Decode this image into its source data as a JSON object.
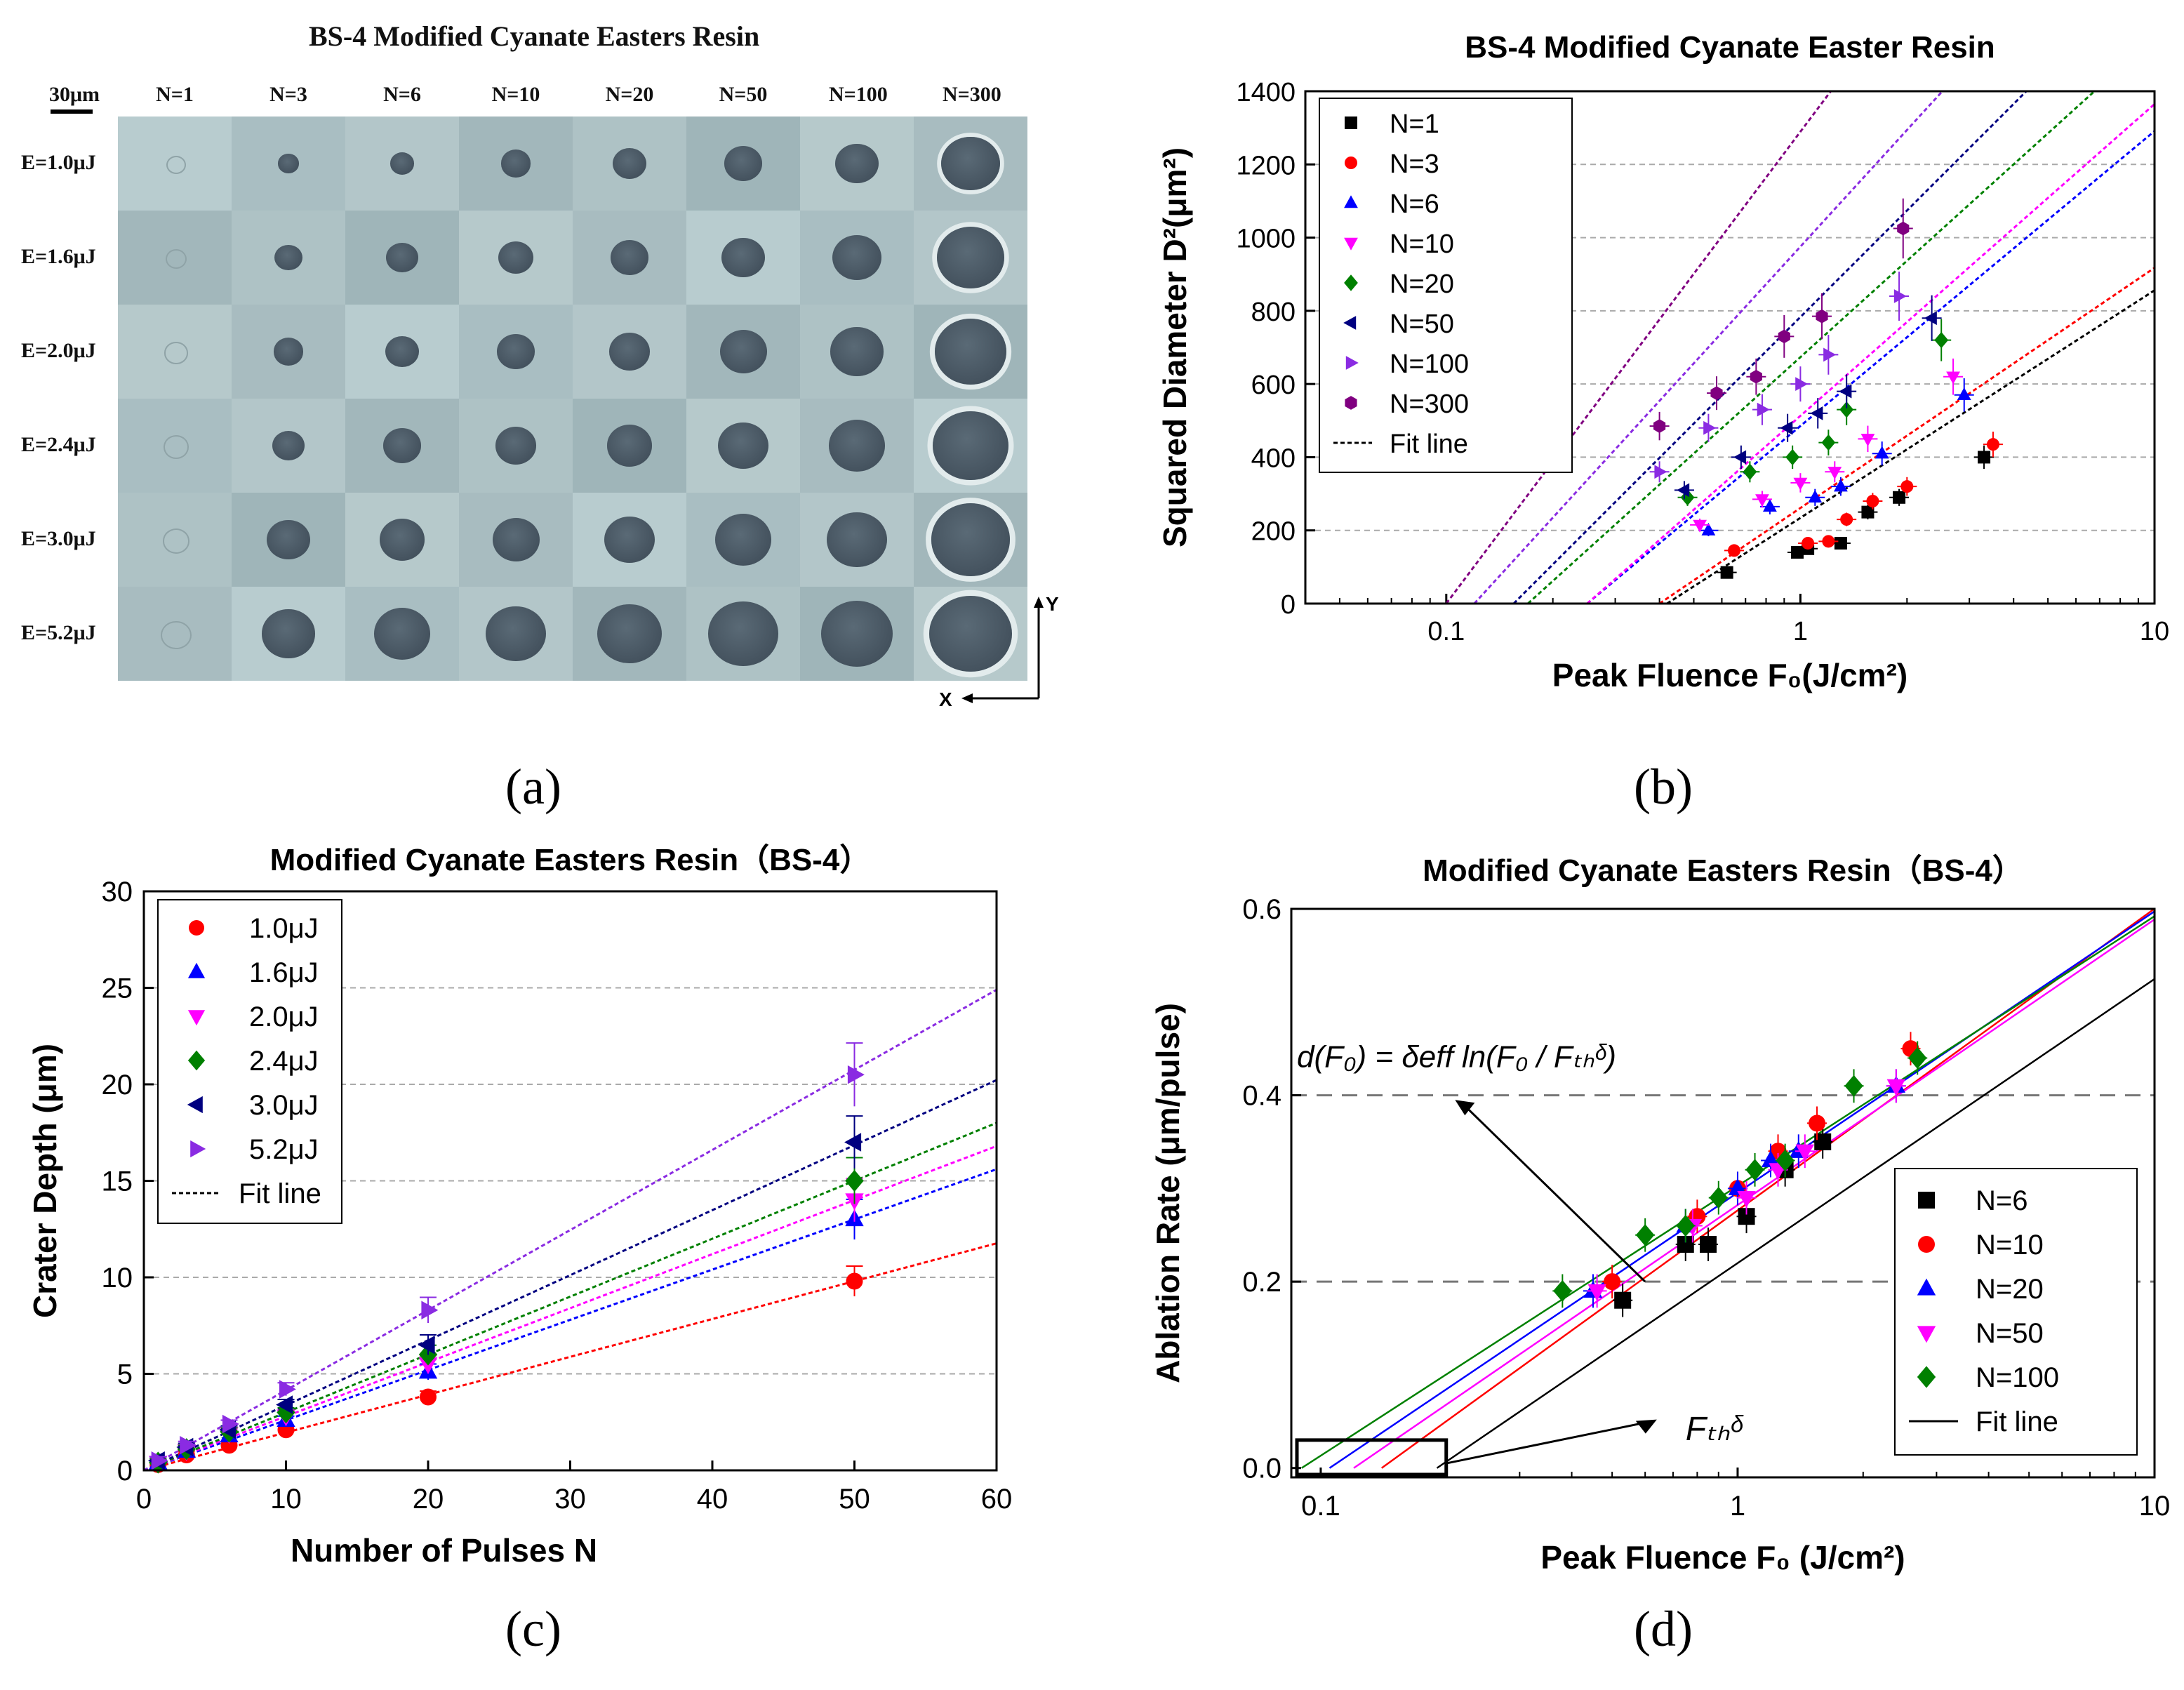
{
  "captions": [
    "(a)",
    "(b)",
    "(c)",
    "(d)"
  ],
  "panel_a": {
    "title": "BS-4 Modified Cyanate Easters Resin",
    "scale_label": "30μm",
    "columns": [
      "N=1",
      "N=3",
      "N=6",
      "N=10",
      "N=20",
      "N=50",
      "N=100",
      "N=300"
    ],
    "rows": [
      "E=1.0μJ",
      "E=1.6μJ",
      "E=2.0μJ",
      "E=2.4μJ",
      "E=3.0μJ",
      "E=5.2μJ"
    ],
    "axis_x": "X",
    "axis_y": "Y",
    "crater_diam_rel": [
      [
        0.18,
        0.22,
        0.26,
        0.32,
        0.36,
        0.4,
        0.46,
        0.62
      ],
      [
        0.2,
        0.3,
        0.34,
        0.38,
        0.4,
        0.46,
        0.52,
        0.72
      ],
      [
        0.22,
        0.32,
        0.36,
        0.4,
        0.44,
        0.5,
        0.56,
        0.76
      ],
      [
        0.24,
        0.34,
        0.4,
        0.44,
        0.48,
        0.54,
        0.6,
        0.8
      ],
      [
        0.26,
        0.46,
        0.48,
        0.5,
        0.54,
        0.6,
        0.64,
        0.84
      ],
      [
        0.3,
        0.56,
        0.6,
        0.64,
        0.68,
        0.74,
        0.76,
        0.88
      ]
    ]
  },
  "chart_data": [
    {
      "type": "scatter",
      "title": "BS-4  Modified Cyanate Easter Resin",
      "xlabel": "Peak Fluence F₀(J/cm²)",
      "ylabel": "Squared Diameter D²(μm²)",
      "xscale": "log",
      "xlim": [
        0.04,
        10
      ],
      "ylim": [
        0,
        1400
      ],
      "xticks": [
        0.1,
        1,
        10
      ],
      "xtick_labels": [
        "0.1",
        "1",
        "10"
      ],
      "yticks": [
        0,
        200,
        400,
        600,
        800,
        1000,
        1200,
        1400
      ],
      "legend_position": "top-left",
      "grid": "horizontal dashed",
      "series": [
        {
          "name": "N=1",
          "color": "#000000",
          "marker": "square",
          "x": [
            0.62,
            0.98,
            1.05,
            1.3,
            1.55,
            1.9,
            3.3
          ],
          "y": [
            85,
            140,
            150,
            165,
            250,
            290,
            400
          ],
          "fit": {
            "F_th": 0.42,
            "slope": 270
          }
        },
        {
          "name": "N=3",
          "color": "#ff0000",
          "marker": "circle",
          "x": [
            0.65,
            1.05,
            1.2,
            1.35,
            1.6,
            2.0,
            3.5
          ],
          "y": [
            145,
            165,
            170,
            230,
            280,
            320,
            435
          ],
          "fit": {
            "F_th": 0.4,
            "slope": 285
          }
        },
        {
          "name": "N=6",
          "color": "#0000ff",
          "marker": "triangle-up",
          "x": [
            0.55,
            0.82,
            1.1,
            1.3,
            1.7,
            2.9
          ],
          "y": [
            200,
            265,
            290,
            320,
            410,
            570
          ],
          "fit": {
            "F_th": 0.25,
            "slope": 350
          }
        },
        {
          "name": "N=10",
          "color": "#ff00ff",
          "marker": "triangle-down",
          "x": [
            0.52,
            0.78,
            1.0,
            1.25,
            1.55,
            2.7
          ],
          "y": [
            215,
            285,
            330,
            360,
            450,
            620
          ],
          "fit": {
            "F_th": 0.25,
            "slope": 370
          }
        },
        {
          "name": "N=20",
          "color": "#008000",
          "marker": "diamond",
          "x": [
            0.48,
            0.72,
            0.95,
            1.2,
            1.35,
            2.5
          ],
          "y": [
            290,
            360,
            400,
            440,
            530,
            720
          ],
          "fit": {
            "F_th": 0.17,
            "slope": 380
          }
        },
        {
          "name": "N=50",
          "color": "#000080",
          "marker": "triangle-left",
          "x": [
            0.47,
            0.68,
            0.92,
            1.12,
            1.35,
            2.35
          ],
          "y": [
            310,
            400,
            480,
            520,
            580,
            780
          ],
          "fit": {
            "F_th": 0.155,
            "slope": 420
          }
        },
        {
          "name": "N=100",
          "color": "#8a2be2",
          "marker": "triangle-right",
          "x": [
            0.4,
            0.55,
            0.78,
            1.0,
            1.2,
            1.9
          ],
          "y": [
            360,
            480,
            530,
            600,
            680,
            840
          ],
          "fit": {
            "F_th": 0.12,
            "slope": 460
          }
        },
        {
          "name": "N=300",
          "color": "#800080",
          "marker": "hexagon",
          "x": [
            0.4,
            0.58,
            0.75,
            0.9,
            1.15,
            1.95
          ],
          "y": [
            485,
            575,
            620,
            730,
            785,
            1025
          ],
          "fit": {
            "F_th": 0.1,
            "slope": 560
          }
        }
      ],
      "fit_label": "Fit line"
    },
    {
      "type": "scatter",
      "title": "Modified Cyanate Easters Resin（BS-4）",
      "xlabel": "Number of Pulses N",
      "ylabel": "Crater Depth (μm)",
      "xlim": [
        0,
        60
      ],
      "ylim": [
        0,
        30
      ],
      "xticks": [
        0,
        10,
        20,
        30,
        40,
        50,
        60
      ],
      "yticks": [
        0,
        5,
        10,
        15,
        20,
        25,
        30
      ],
      "legend_position": "top-left",
      "grid": "horizontal dashed",
      "series": [
        {
          "name": "1.0μJ",
          "color": "#ff0000",
          "marker": "circle",
          "x": [
            1,
            3,
            6,
            10,
            20,
            50
          ],
          "y": [
            0.3,
            0.8,
            1.3,
            2.1,
            3.8,
            9.8
          ],
          "slope": 0.196
        },
        {
          "name": "1.6μJ",
          "color": "#0000ff",
          "marker": "triangle-up",
          "x": [
            1,
            3,
            6,
            10,
            20,
            50
          ],
          "y": [
            0.4,
            1.0,
            1.8,
            2.6,
            5.1,
            13.0
          ],
          "slope": 0.26
        },
        {
          "name": "2.0μJ",
          "color": "#ff00ff",
          "marker": "triangle-down",
          "x": [
            1,
            3,
            6,
            10,
            20,
            50
          ],
          "y": [
            0.4,
            1.0,
            1.9,
            2.8,
            5.5,
            14.0
          ],
          "slope": 0.28
        },
        {
          "name": "2.4μJ",
          "color": "#008000",
          "marker": "diamond",
          "x": [
            1,
            3,
            6,
            10,
            20,
            50
          ],
          "y": [
            0.4,
            1.1,
            2.0,
            3.0,
            6.0,
            15.0
          ],
          "slope": 0.3
        },
        {
          "name": "3.0μJ",
          "color": "#000080",
          "marker": "triangle-left",
          "x": [
            1,
            3,
            6,
            10,
            20,
            50
          ],
          "y": [
            0.5,
            1.2,
            2.1,
            3.4,
            6.5,
            17.0
          ],
          "slope": 0.337
        },
        {
          "name": "5.2μJ",
          "color": "#8a2be2",
          "marker": "triangle-right",
          "x": [
            1,
            3,
            6,
            10,
            20,
            50
          ],
          "y": [
            0.5,
            1.3,
            2.4,
            4.2,
            8.3,
            20.5
          ],
          "slope": 0.415
        }
      ],
      "fit_label": "Fit line"
    },
    {
      "type": "scatter",
      "title": "Modified Cyanate Easters Resin（BS-4）",
      "xlabel": "Peak Fluence F₀ (J/cm²)",
      "ylabel": "Ablation Rate (μm/pulse)",
      "xscale": "log",
      "xlim": [
        0.085,
        10
      ],
      "ylim": [
        -0.01,
        0.6
      ],
      "xticks": [
        0.1,
        1,
        10
      ],
      "xtick_labels": [
        "0.1",
        "1",
        "10"
      ],
      "yticks": [
        0.0,
        0.2,
        0.4,
        0.6
      ],
      "ytick_labels": [
        "0.0",
        "0.2",
        "0.4",
        "0.6"
      ],
      "legend_position": "bottom-right",
      "reference_lines": [
        0.2,
        0.4
      ],
      "annotation_formula": "d(F₀) = δeff ln(F₀ / Fₜₕᵟ)",
      "annotation_threshold": "Fₜₕᵟ",
      "series": [
        {
          "name": "N=6",
          "color": "#000000",
          "marker": "square",
          "x": [
            0.53,
            0.75,
            0.85,
            1.05,
            1.3,
            1.6
          ],
          "y": [
            0.18,
            0.24,
            0.24,
            0.27,
            0.32,
            0.35
          ],
          "fit": {
            "F_th": 0.19,
            "slope": 0.1324
          }
        },
        {
          "name": "N=10",
          "color": "#ff0000",
          "marker": "circle",
          "x": [
            0.5,
            0.8,
            1.0,
            1.25,
            1.55,
            2.6
          ],
          "y": [
            0.2,
            0.27,
            0.3,
            0.34,
            0.37,
            0.45
          ],
          "fit": {
            "F_th": 0.14,
            "slope": 0.1406
          }
        },
        {
          "name": "N=20",
          "color": "#0000ff",
          "marker": "triangle-up",
          "x": [
            0.45,
            0.75,
            1.0,
            1.2,
            1.4,
            2.4
          ],
          "y": [
            0.19,
            0.26,
            0.3,
            0.33,
            0.34,
            0.41
          ],
          "fit": {
            "F_th": 0.105,
            "slope": 0.1311
          }
        },
        {
          "name": "N=50",
          "color": "#ff00ff",
          "marker": "triangle-down",
          "x": [
            0.46,
            0.78,
            1.05,
            1.25,
            1.45,
            2.4
          ],
          "y": [
            0.19,
            0.26,
            0.29,
            0.32,
            0.34,
            0.41
          ],
          "fit": {
            "F_th": 0.12,
            "slope": 0.1331
          }
        },
        {
          "name": "N=100",
          "color": "#008000",
          "marker": "diamond",
          "x": [
            0.38,
            0.6,
            0.75,
            0.9,
            1.1,
            1.3,
            1.9,
            2.7
          ],
          "y": [
            0.19,
            0.25,
            0.26,
            0.29,
            0.32,
            0.33,
            0.41,
            0.44
          ],
          "fit": {
            "F_th": 0.09,
            "slope": 0.1257
          }
        }
      ],
      "fit_label": "Fit line"
    }
  ]
}
